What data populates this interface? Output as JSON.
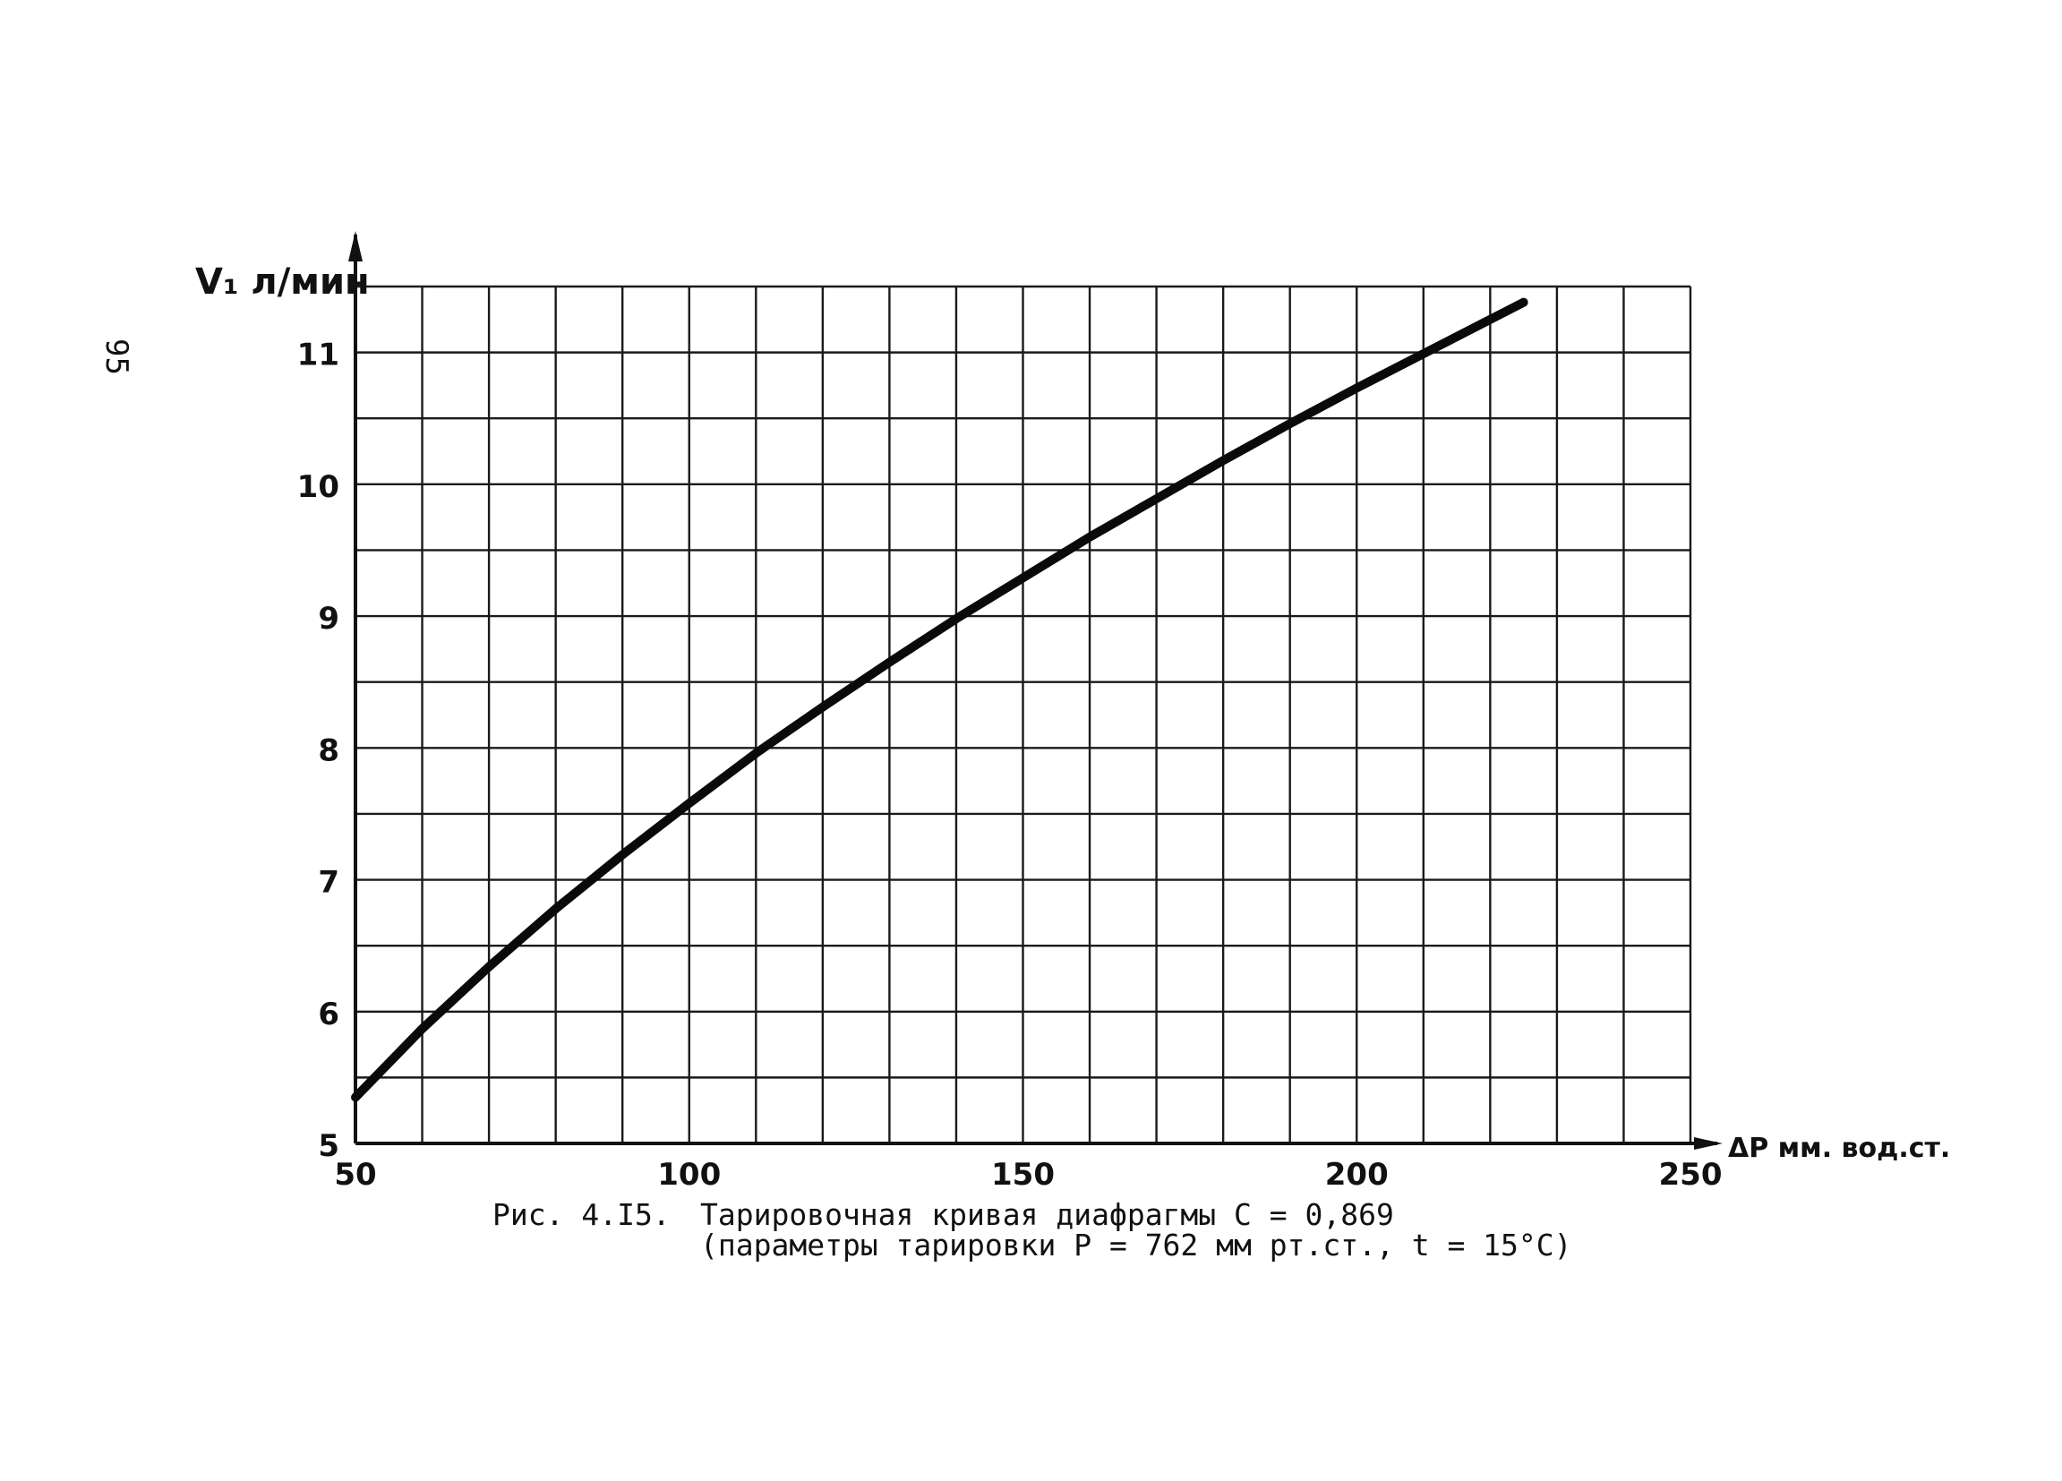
{
  "page_number": "95",
  "caption": {
    "prefix": "Рис. 4.I5.",
    "line1": "Тарировочная кривая диафрагмы С = 0,869",
    "line2": "(параметры тарировки Р = 762 мм рт.ст., t = 15°C)"
  },
  "chart_data": {
    "type": "line",
    "ylabel": "V₁ л/мин",
    "xlabel": "ΔP мм. вод.ст.",
    "xlim": [
      50,
      250
    ],
    "ylim": [
      5,
      11.5
    ],
    "x_ticks": [
      {
        "value": 50,
        "label": "50"
      },
      {
        "value": 100,
        "label": "100"
      },
      {
        "value": 150,
        "label": "150"
      },
      {
        "value": 200,
        "label": "200"
      },
      {
        "value": 250,
        "label": "250"
      }
    ],
    "y_ticks": [
      {
        "value": 5,
        "label": "5"
      },
      {
        "value": 6,
        "label": "6"
      },
      {
        "value": 7,
        "label": "7"
      },
      {
        "value": 8,
        "label": "8"
      },
      {
        "value": 9,
        "label": "9"
      },
      {
        "value": 10,
        "label": "10"
      },
      {
        "value": 11,
        "label": "11"
      }
    ],
    "grid": true,
    "grid_minor_x": 10,
    "grid_minor_y": 0.5,
    "series": [
      {
        "x": [
          50,
          60,
          70,
          80,
          90,
          100,
          110,
          120,
          130,
          140,
          150,
          160,
          170,
          180,
          190,
          200,
          210,
          220,
          225
        ],
        "values": [
          5.35,
          5.87,
          6.34,
          6.78,
          7.19,
          7.58,
          7.96,
          8.31,
          8.65,
          8.98,
          9.29,
          9.6,
          9.89,
          10.18,
          10.46,
          10.73,
          10.99,
          11.25,
          11.38
        ]
      }
    ]
  }
}
